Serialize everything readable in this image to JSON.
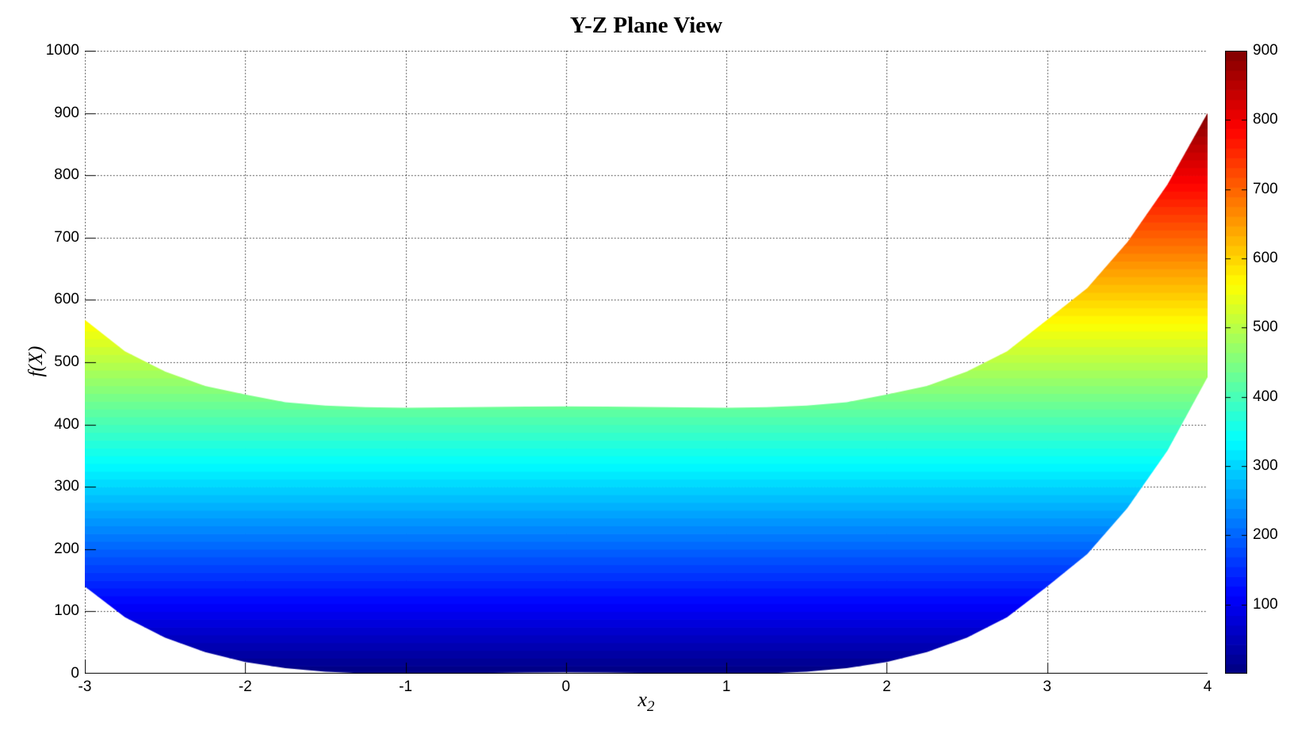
{
  "figure": {
    "background_color": "#ffffff",
    "axes_color": "#000000",
    "grid_style": "dotted"
  },
  "chart_data": {
    "type": "area",
    "subtype": "3d-surface-side-projection-band",
    "title": "Y-Z Plane View",
    "xlabel_base": "x",
    "xlabel_sub": "2",
    "ylabel": "f(X)",
    "xlim": [
      -3,
      4
    ],
    "ylim": [
      0,
      1000
    ],
    "x_ticks": [
      -3,
      -2,
      -1,
      0,
      1,
      2,
      3,
      4
    ],
    "y_ticks": [
      0,
      100,
      200,
      300,
      400,
      500,
      600,
      700,
      800,
      900,
      1000
    ],
    "grid": "on",
    "colormap": "jet",
    "color_min": 0,
    "color_max": 900,
    "colormap_key_hex": {
      "c0": "#00008f",
      "c150": "#002bff",
      "c340": "#00f4ff",
      "c560": "#fcff03",
      "c790": "#ff1500",
      "c900": "#800000"
    },
    "band": {
      "comment": "Lower and upper silhouette of f(X) surface seen along x1, values read from plot",
      "x2": [
        -3,
        -2.75,
        -2.5,
        -2.25,
        -2,
        -1.75,
        -1.5,
        -1.25,
        -1,
        -0.75,
        -0.5,
        -0.25,
        0,
        0.25,
        0.5,
        0.75,
        1,
        1.25,
        1.5,
        1.75,
        2,
        2.25,
        2.5,
        2.75,
        3,
        3.25,
        3.5,
        3.75,
        4
      ],
      "f_lower": [
        140,
        90.5,
        57.9,
        34.7,
        18.9,
        8.9,
        3.3,
        0.7,
        0,
        0.4,
        1.2,
        1.8,
        2.1,
        1.8,
        1.2,
        0.4,
        0,
        0.7,
        3.3,
        8.9,
        18.9,
        34.7,
        57.9,
        90.5,
        140,
        192,
        265.8,
        358.3,
        476
      ],
      "f_upper": [
        568,
        517.5,
        484.9,
        461.7,
        448,
        435.9,
        430.3,
        427.7,
        427,
        427.4,
        428.2,
        428.8,
        429.1,
        428.8,
        428.2,
        427.4,
        427,
        427.7,
        430.3,
        435.9,
        448,
        461.7,
        484.9,
        517.5,
        568,
        619,
        692.8,
        785.3,
        900
      ]
    },
    "colorbar": {
      "min": 0,
      "max": 900,
      "ticks": [
        100,
        200,
        300,
        400,
        500,
        600,
        700,
        800,
        900
      ],
      "position": "right"
    }
  }
}
